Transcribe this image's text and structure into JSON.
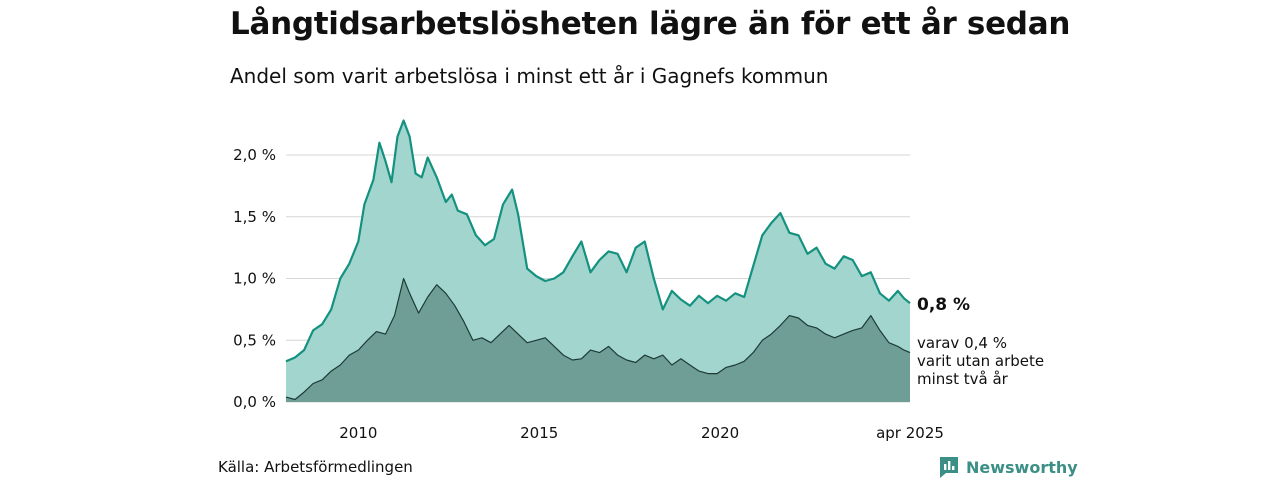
{
  "header": {
    "title": "Långtidsarbetslösheten lägre än för ett år sedan",
    "subtitle": "Andel som varit arbetslösa i minst ett år i Gagnefs kommun"
  },
  "footer": {
    "source": "Källa: Arbetsförmedlingen",
    "brand": "Newsworthy"
  },
  "colors": {
    "series1_fill": "#a3d5cf",
    "series1_line": "#14917f",
    "series2_fill": "#6e9e96",
    "series2_line": "#1d3b36",
    "grid": "#d6d6d6",
    "brand": "#3b8f86"
  },
  "chart_data": {
    "type": "area",
    "title": "Långtidsarbetslösheten lägre än för ett år sedan",
    "subtitle": "Andel som varit arbetslösa i minst ett år i Gagnefs kommun",
    "x_range": [
      "2008-01",
      "2025-04"
    ],
    "ylim": [
      0,
      2.3
    ],
    "y_ticks": [
      {
        "value": 0.0,
        "label": "0,0 %"
      },
      {
        "value": 0.5,
        "label": "0,5 %"
      },
      {
        "value": 1.0,
        "label": "1,0 %"
      },
      {
        "value": 1.5,
        "label": "1,5 %"
      },
      {
        "value": 2.0,
        "label": "2,0 %"
      }
    ],
    "x_ticks": [
      {
        "value": "2010-01",
        "label": "2010"
      },
      {
        "value": "2015-01",
        "label": "2015"
      },
      {
        "value": "2020-01",
        "label": "2020"
      },
      {
        "value": "2025-04",
        "label": "apr 2025"
      }
    ],
    "grid": true,
    "series": [
      {
        "name": "",
        "points": [
          [
            "2008-01",
            0.33
          ],
          [
            "2008-04",
            0.36
          ],
          [
            "2008-07",
            0.42
          ],
          [
            "2008-10",
            0.58
          ],
          [
            "2009-01",
            0.63
          ],
          [
            "2009-04",
            0.75
          ],
          [
            "2009-07",
            1.0
          ],
          [
            "2009-10",
            1.12
          ],
          [
            "2010-01",
            1.3
          ],
          [
            "2010-03",
            1.6
          ],
          [
            "2010-06",
            1.8
          ],
          [
            "2010-08",
            2.1
          ],
          [
            "2010-10",
            1.95
          ],
          [
            "2010-12",
            1.78
          ],
          [
            "2011-02",
            2.15
          ],
          [
            "2011-04",
            2.28
          ],
          [
            "2011-06",
            2.15
          ],
          [
            "2011-08",
            1.85
          ],
          [
            "2011-10",
            1.82
          ],
          [
            "2011-12",
            1.98
          ],
          [
            "2012-03",
            1.82
          ],
          [
            "2012-06",
            1.62
          ],
          [
            "2012-08",
            1.68
          ],
          [
            "2012-10",
            1.55
          ],
          [
            "2013-01",
            1.52
          ],
          [
            "2013-04",
            1.35
          ],
          [
            "2013-07",
            1.27
          ],
          [
            "2013-10",
            1.32
          ],
          [
            "2014-01",
            1.6
          ],
          [
            "2014-04",
            1.72
          ],
          [
            "2014-06",
            1.52
          ],
          [
            "2014-09",
            1.08
          ],
          [
            "2014-12",
            1.02
          ],
          [
            "2015-03",
            0.98
          ],
          [
            "2015-06",
            1.0
          ],
          [
            "2015-09",
            1.05
          ],
          [
            "2015-12",
            1.18
          ],
          [
            "2016-03",
            1.3
          ],
          [
            "2016-06",
            1.05
          ],
          [
            "2016-09",
            1.15
          ],
          [
            "2016-12",
            1.22
          ],
          [
            "2017-03",
            1.2
          ],
          [
            "2017-06",
            1.05
          ],
          [
            "2017-09",
            1.25
          ],
          [
            "2017-12",
            1.3
          ],
          [
            "2018-03",
            1.0
          ],
          [
            "2018-06",
            0.75
          ],
          [
            "2018-09",
            0.9
          ],
          [
            "2018-12",
            0.83
          ],
          [
            "2019-03",
            0.78
          ],
          [
            "2019-06",
            0.86
          ],
          [
            "2019-09",
            0.8
          ],
          [
            "2019-12",
            0.86
          ],
          [
            "2020-03",
            0.82
          ],
          [
            "2020-06",
            0.88
          ],
          [
            "2020-09",
            0.85
          ],
          [
            "2020-12",
            1.1
          ],
          [
            "2021-03",
            1.35
          ],
          [
            "2021-06",
            1.45
          ],
          [
            "2021-09",
            1.53
          ],
          [
            "2021-12",
            1.37
          ],
          [
            "2022-03",
            1.35
          ],
          [
            "2022-06",
            1.2
          ],
          [
            "2022-09",
            1.25
          ],
          [
            "2022-12",
            1.12
          ],
          [
            "2023-03",
            1.08
          ],
          [
            "2023-06",
            1.18
          ],
          [
            "2023-09",
            1.15
          ],
          [
            "2023-12",
            1.02
          ],
          [
            "2024-03",
            1.05
          ],
          [
            "2024-06",
            0.88
          ],
          [
            "2024-09",
            0.82
          ],
          [
            "2024-12",
            0.9
          ],
          [
            "2025-02",
            0.84
          ],
          [
            "2025-04",
            0.8
          ]
        ]
      },
      {
        "name": "",
        "points": [
          [
            "2008-01",
            0.04
          ],
          [
            "2008-04",
            0.02
          ],
          [
            "2008-07",
            0.08
          ],
          [
            "2008-10",
            0.15
          ],
          [
            "2009-01",
            0.18
          ],
          [
            "2009-04",
            0.25
          ],
          [
            "2009-07",
            0.3
          ],
          [
            "2009-10",
            0.38
          ],
          [
            "2010-01",
            0.42
          ],
          [
            "2010-04",
            0.5
          ],
          [
            "2010-07",
            0.57
          ],
          [
            "2010-10",
            0.55
          ],
          [
            "2011-01",
            0.7
          ],
          [
            "2011-04",
            1.0
          ],
          [
            "2011-06",
            0.88
          ],
          [
            "2011-09",
            0.72
          ],
          [
            "2011-12",
            0.85
          ],
          [
            "2012-03",
            0.95
          ],
          [
            "2012-06",
            0.88
          ],
          [
            "2012-09",
            0.78
          ],
          [
            "2012-12",
            0.65
          ],
          [
            "2013-03",
            0.5
          ],
          [
            "2013-06",
            0.52
          ],
          [
            "2013-09",
            0.48
          ],
          [
            "2013-12",
            0.55
          ],
          [
            "2014-03",
            0.62
          ],
          [
            "2014-06",
            0.55
          ],
          [
            "2014-09",
            0.48
          ],
          [
            "2014-12",
            0.5
          ],
          [
            "2015-03",
            0.52
          ],
          [
            "2015-06",
            0.45
          ],
          [
            "2015-09",
            0.38
          ],
          [
            "2015-12",
            0.34
          ],
          [
            "2016-03",
            0.35
          ],
          [
            "2016-06",
            0.42
          ],
          [
            "2016-09",
            0.4
          ],
          [
            "2016-12",
            0.45
          ],
          [
            "2017-03",
            0.38
          ],
          [
            "2017-06",
            0.34
          ],
          [
            "2017-09",
            0.32
          ],
          [
            "2017-12",
            0.38
          ],
          [
            "2018-03",
            0.35
          ],
          [
            "2018-06",
            0.38
          ],
          [
            "2018-09",
            0.3
          ],
          [
            "2018-12",
            0.35
          ],
          [
            "2019-03",
            0.3
          ],
          [
            "2019-06",
            0.25
          ],
          [
            "2019-09",
            0.23
          ],
          [
            "2019-12",
            0.23
          ],
          [
            "2020-03",
            0.28
          ],
          [
            "2020-06",
            0.3
          ],
          [
            "2020-09",
            0.33
          ],
          [
            "2020-12",
            0.4
          ],
          [
            "2021-03",
            0.5
          ],
          [
            "2021-06",
            0.55
          ],
          [
            "2021-09",
            0.62
          ],
          [
            "2021-12",
            0.7
          ],
          [
            "2022-03",
            0.68
          ],
          [
            "2022-06",
            0.62
          ],
          [
            "2022-09",
            0.6
          ],
          [
            "2022-12",
            0.55
          ],
          [
            "2023-03",
            0.52
          ],
          [
            "2023-06",
            0.55
          ],
          [
            "2023-09",
            0.58
          ],
          [
            "2023-12",
            0.6
          ],
          [
            "2024-03",
            0.7
          ],
          [
            "2024-06",
            0.58
          ],
          [
            "2024-09",
            0.48
          ],
          [
            "2024-12",
            0.45
          ],
          [
            "2025-02",
            0.42
          ],
          [
            "2025-04",
            0.4
          ]
        ]
      }
    ],
    "annotations": {
      "end_value_main": "0,8 %",
      "end_value_sub_lines": [
        "varav 0,4 %",
        "varit utan arbete",
        "minst två år"
      ]
    }
  }
}
